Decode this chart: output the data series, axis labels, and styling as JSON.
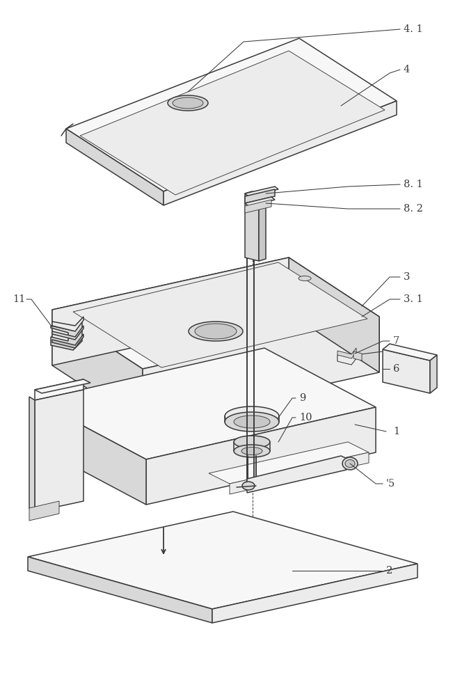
{
  "bg_color": "#ffffff",
  "line_color": "#3a3a3a",
  "lw": 1.1,
  "thin_lw": 0.65,
  "label_fontsize": 10.5,
  "face_light": "#f7f7f7",
  "face_mid": "#ececec",
  "face_dark": "#d8d8d8",
  "face_darker": "#c8c8c8"
}
